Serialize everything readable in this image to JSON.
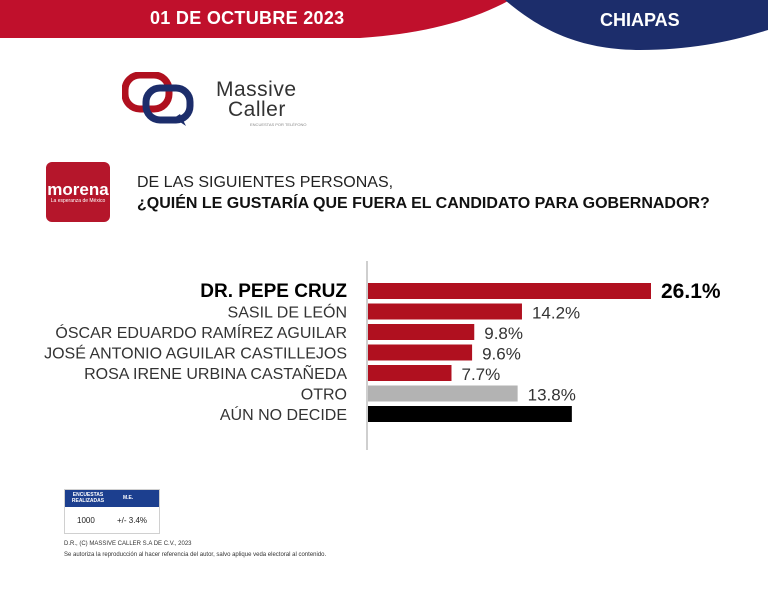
{
  "header": {
    "date": "01 DE OCTUBRE 2023",
    "state": "CHIAPAS",
    "red_color": "#c0102c",
    "blue_color": "#1c2d6b"
  },
  "brand": {
    "line1": "Massive",
    "line2": "Caller",
    "tagline": "ENCUESTAS POR TELÉFONO",
    "logo_icon": "speech-bubbles-icon"
  },
  "party": {
    "name": "morena",
    "slogan": "La esperanza de México",
    "color": "#b5162b"
  },
  "question": {
    "line1": "DE LAS SIGUIENTES PERSONAS,",
    "line2": "¿QUIÉN LE GUSTARÍA QUE FUERA EL CANDIDATO PARA GOBERNADOR?"
  },
  "chart_data": {
    "type": "bar",
    "orientation": "horizontal",
    "categories": [
      "DR. PEPE CRUZ",
      "SASIL DE LEÓN",
      "ÓSCAR EDUARDO RAMÍREZ AGUILAR",
      "JOSÉ ANTONIO AGUILAR CASTILLEJOS",
      "ROSA IRENE URBINA CASTAÑEDA",
      "OTRO",
      "AÚN NO DECIDE"
    ],
    "values": [
      26.1,
      14.2,
      9.8,
      9.6,
      7.7,
      13.8,
      18.8
    ],
    "labels": [
      "26.1%",
      "14.2%",
      "9.8%",
      "9.6%",
      "7.7%",
      "13.8%",
      ""
    ],
    "colors": [
      "#b0101f",
      "#b0101f",
      "#b0101f",
      "#b0101f",
      "#b0101f",
      "#b3b3b3",
      "#000000"
    ],
    "highlight_index": 0,
    "xlim": [
      0,
      30
    ]
  },
  "sample": {
    "col1_header": "ENCUESTAS REALIZADAS",
    "col2_header": "M.E.",
    "col1_value": "1000",
    "col2_value": "+/- 3.4%"
  },
  "footer": {
    "line1": "D.R., (C) MASSIVE CALLER S.A DE C.V., 2023",
    "line2": "Se autoriza la reproducción al hacer referencia del autor, salvo aplique veda electoral al contenido."
  }
}
